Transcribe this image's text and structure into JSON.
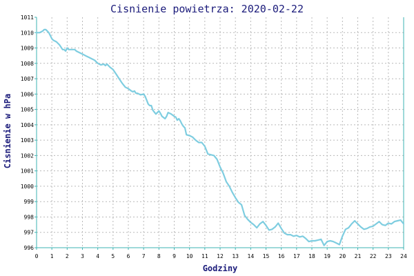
{
  "chart_data": {
    "type": "line",
    "title": "Cisnienie powietrza: 2020-02-22",
    "xlabel": "Godziny",
    "ylabel": "Cisnienie w hPa",
    "xlim": [
      0,
      24
    ],
    "ylim": [
      996,
      1011
    ],
    "xticks": [
      0,
      1,
      2,
      3,
      4,
      5,
      6,
      7,
      8,
      9,
      10,
      11,
      12,
      13,
      14,
      15,
      16,
      17,
      18,
      19,
      20,
      21,
      22,
      23,
      24
    ],
    "yticks": [
      996,
      997,
      998,
      999,
      1000,
      1001,
      1002,
      1003,
      1004,
      1005,
      1006,
      1007,
      1008,
      1009,
      1010,
      1011
    ],
    "grid": true,
    "colors": {
      "line": "#7ecde0",
      "axis": "#3bb3b3",
      "grid": "#b8b8b8",
      "title": "#1a1a7a"
    },
    "series": [
      {
        "x": [
          0,
          0.2,
          0.4,
          0.5,
          0.6,
          0.7,
          0.8,
          0.9,
          1.0,
          1.1,
          1.3,
          1.5,
          1.7,
          1.8,
          1.9,
          2.0,
          2.1,
          2.2,
          2.3,
          2.5,
          2.6,
          2.8,
          3.0,
          3.2,
          3.4,
          3.6,
          3.8,
          4.0,
          4.2,
          4.4,
          4.5,
          4.6,
          4.8,
          5.0,
          5.2,
          5.4,
          5.6,
          5.8,
          6.0,
          6.2,
          6.3,
          6.4,
          6.5,
          6.6,
          6.8,
          7.0,
          7.1,
          7.2,
          7.3,
          7.4,
          7.5,
          7.6,
          7.8,
          8.0,
          8.1,
          8.2,
          8.4,
          8.5,
          8.6,
          8.8,
          9.0,
          9.1,
          9.2,
          9.3,
          9.4,
          9.5,
          9.6,
          9.7,
          9.8,
          10.0,
          10.2,
          10.4,
          10.6,
          10.8,
          11.0,
          11.2,
          11.4,
          11.6,
          11.8,
          12.0,
          12.2,
          12.4,
          12.6,
          12.8,
          13.0,
          13.2,
          13.4,
          13.6,
          13.8,
          14.0,
          14.2,
          14.4,
          14.6,
          14.8,
          15.0,
          15.2,
          15.4,
          15.6,
          15.8,
          16.0,
          16.2,
          16.4,
          16.6,
          16.8,
          17.0,
          17.2,
          17.4,
          17.6,
          17.8,
          18.0,
          18.2,
          18.4,
          18.6,
          18.8,
          19.0,
          19.2,
          19.4,
          19.6,
          19.8,
          20.0,
          20.2,
          20.4,
          20.6,
          20.8,
          21.0,
          21.2,
          21.4,
          21.6,
          21.8,
          22.0,
          22.2,
          22.4,
          22.6,
          22.8,
          23.0,
          23.2,
          23.4,
          23.6,
          23.8,
          24.0
        ],
        "y": [
          1010,
          1010,
          1010.1,
          1010.2,
          1010.2,
          1010.1,
          1010,
          1009.8,
          1009.6,
          1009.5,
          1009.4,
          1009.2,
          1008.9,
          1008.9,
          1008.8,
          1009,
          1008.9,
          1008.9,
          1008.9,
          1008.9,
          1008.8,
          1008.7,
          1008.6,
          1008.5,
          1008.4,
          1008.3,
          1008.2,
          1008.0,
          1007.9,
          1007.95,
          1007.85,
          1007.95,
          1007.75,
          1007.6,
          1007.3,
          1007.0,
          1006.7,
          1006.45,
          1006.35,
          1006.2,
          1006.15,
          1006.2,
          1006.05,
          1006.05,
          1005.95,
          1006.0,
          1005.85,
          1005.6,
          1005.35,
          1005.25,
          1005.25,
          1004.95,
          1004.7,
          1004.9,
          1004.75,
          1004.55,
          1004.4,
          1004.55,
          1004.8,
          1004.7,
          1004.55,
          1004.5,
          1004.3,
          1004.4,
          1004.25,
          1004.05,
          1003.9,
          1003.8,
          1003.35,
          1003.3,
          1003.2,
          1003.0,
          1002.85,
          1002.85,
          1002.6,
          1002.1,
          1002.05,
          1002.0,
          1001.75,
          1001.25,
          1000.85,
          1000.3,
          1000.0,
          999.6,
          999.25,
          998.95,
          998.8,
          998.1,
          997.85,
          997.65,
          997.5,
          997.3,
          997.55,
          997.7,
          997.45,
          997.15,
          997.2,
          997.35,
          997.6,
          997.25,
          996.95,
          996.85,
          996.85,
          996.75,
          996.8,
          996.7,
          996.75,
          996.6,
          996.4,
          996.45,
          996.45,
          996.5,
          996.55,
          996.15,
          996.4,
          996.45,
          996.4,
          996.3,
          996.2,
          996.75,
          997.2,
          997.3,
          997.55,
          997.75,
          997.55,
          997.35,
          997.2,
          997.25,
          997.35,
          997.4,
          997.55,
          997.7,
          997.5,
          997.45,
          997.6,
          997.55,
          997.7,
          997.75,
          997.8,
          997.55
        ]
      }
    ]
  }
}
